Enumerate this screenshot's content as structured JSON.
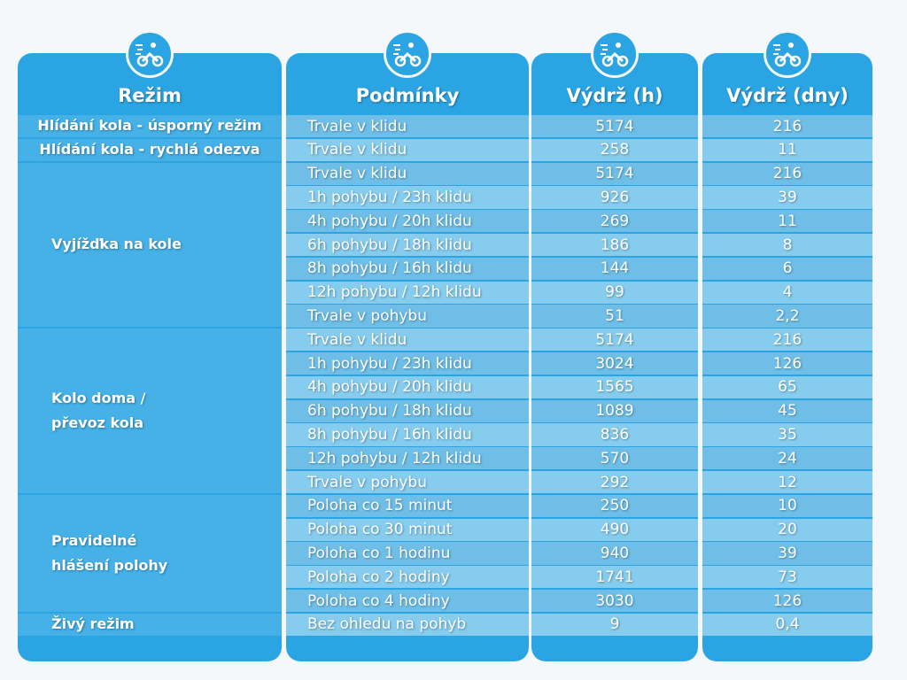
{
  "table": {
    "headers": [
      "Režim",
      "Podmínky",
      "Výdrž (h)",
      "Výdrž (dny)"
    ],
    "groups": [
      {
        "mode": [
          "Hlídání kola - úsporný režim"
        ],
        "rows": [
          [
            "Trvale v klidu",
            "5174",
            "216"
          ]
        ]
      },
      {
        "mode": [
          "Hlídání kola - rychlá odezva"
        ],
        "rows": [
          [
            "Trvale v klidu",
            "258",
            "11"
          ]
        ]
      },
      {
        "mode": [
          "Vyjížďka na kole"
        ],
        "rows": [
          [
            "Trvale v klidu",
            "5174",
            "216"
          ],
          [
            "1h pohybu / 23h klidu",
            "926",
            "39"
          ],
          [
            "4h pohybu / 20h klidu",
            "269",
            "11"
          ],
          [
            "6h pohybu / 18h klidu",
            "186",
            "8"
          ],
          [
            "8h pohybu / 16h klidu",
            "144",
            "6"
          ],
          [
            "12h pohybu / 12h klidu",
            "99",
            "4"
          ],
          [
            "Trvale v pohybu",
            "51",
            "2,2"
          ]
        ]
      },
      {
        "mode": [
          "Kolo doma /",
          "převoz kola"
        ],
        "rows": [
          [
            "Trvale v klidu",
            "5174",
            "216"
          ],
          [
            "1h pohybu / 23h klidu",
            "3024",
            "126"
          ],
          [
            "4h pohybu / 20h klidu",
            "1565",
            "65"
          ],
          [
            "6h pohybu / 18h klidu",
            "1089",
            "45"
          ],
          [
            "8h pohybu / 16h klidu",
            "836",
            "35"
          ],
          [
            "12h pohybu / 12h klidu",
            "570",
            "24"
          ],
          [
            "Trvale v pohybu",
            "292",
            "12"
          ]
        ]
      },
      {
        "mode": [
          "Pravidelné",
          "hlášení polohy"
        ],
        "rows": [
          [
            "Poloha co 15 minut",
            "250",
            "10"
          ],
          [
            "Poloha co 30 minut",
            "490",
            "20"
          ],
          [
            "Poloha co 1 hodinu",
            "940",
            "39"
          ],
          [
            "Poloha co 2 hodiny",
            "1741",
            "73"
          ],
          [
            "Poloha co 4 hodiny",
            "3030",
            "126"
          ]
        ]
      },
      {
        "mode": [
          "Živý režim"
        ],
        "rows": [
          [
            "Bez ohledu na pohyb",
            "9",
            "0,4"
          ]
        ]
      }
    ]
  }
}
